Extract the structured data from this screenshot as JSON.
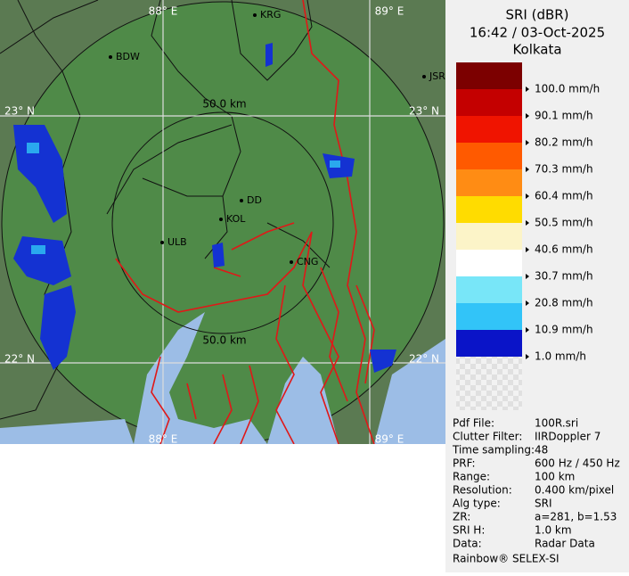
{
  "header": {
    "product": "SRI (dBR)",
    "time": "16:42 / 03-Oct-2025",
    "site": "Kolkata"
  },
  "legend": [
    {
      "label": "100.0 mm/h",
      "color": "#7c0000"
    },
    {
      "label": "90.1 mm/h",
      "color": "#c40000"
    },
    {
      "label": "80.2 mm/h",
      "color": "#f01400"
    },
    {
      "label": "70.3 mm/h",
      "color": "#ff5a00"
    },
    {
      "label": "60.4 mm/h",
      "color": "#ff8c14"
    },
    {
      "label": "50.5 mm/h",
      "color": "#ffdc00"
    },
    {
      "label": "40.6 mm/h",
      "color": "#fcf4c8"
    },
    {
      "label": "30.7 mm/h",
      "color": "#ffffff"
    },
    {
      "label": "20.8 mm/h",
      "color": "#78e6f8"
    },
    {
      "label": "10.9 mm/h",
      "color": "#32c4f8"
    },
    {
      "label": "1.0 mm/h",
      "color": "#1464ff"
    }
  ],
  "legend_bottom_color": "#0a14c8",
  "map": {
    "lon_labels": [
      "88° E",
      "89° E"
    ],
    "lat_labels": [
      "23° N",
      "22° N"
    ],
    "ring_labels": [
      "50.0 km",
      "50.0 km"
    ],
    "places": [
      "KRG",
      "BDW",
      "JSR",
      "DD",
      "KOL",
      "ULB",
      "CNG"
    ]
  },
  "info": [
    [
      "Pdf File:",
      "100R.sri"
    ],
    [
      "Clutter Filter:",
      "IIRDoppler 7"
    ],
    [
      "Time sampling:",
      "48"
    ],
    [
      "PRF:",
      "600 Hz / 450 Hz"
    ],
    [
      "Range:",
      "100 km"
    ],
    [
      "Resolution:",
      "0.400 km/pixel"
    ],
    [
      "Alg type:",
      "SRI"
    ],
    [
      "ZR:",
      "a=281, b=1.53"
    ],
    [
      "SRI H:",
      "1.0 km"
    ],
    [
      "Data:",
      "Radar Data"
    ]
  ],
  "footer": "Rainbow® SELEX-SI"
}
